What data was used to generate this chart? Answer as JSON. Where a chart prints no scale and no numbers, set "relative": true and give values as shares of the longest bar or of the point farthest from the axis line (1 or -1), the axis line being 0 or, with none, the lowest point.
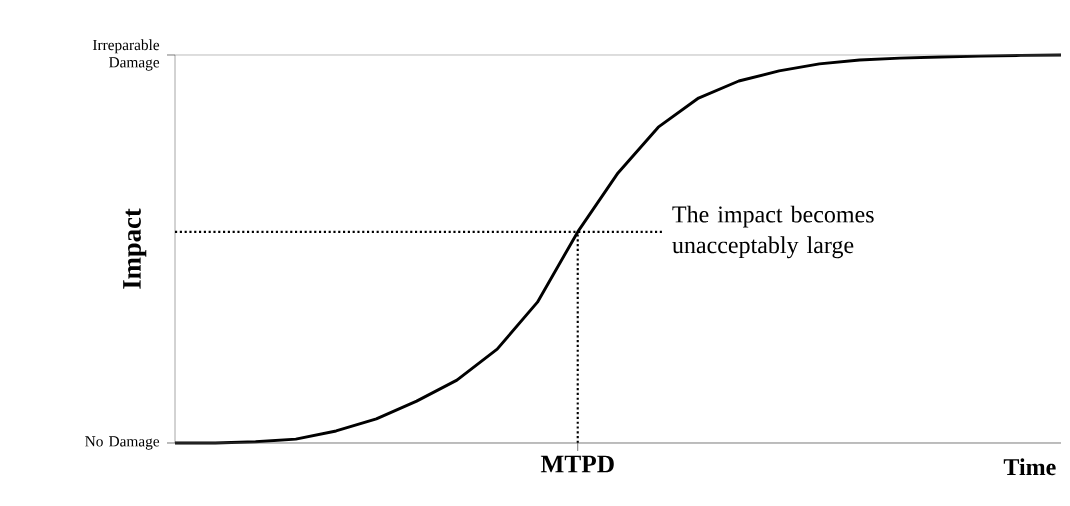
{
  "chart_data": {
    "type": "line",
    "relative": true,
    "xlabel": "Time",
    "ylabel": "Impact",
    "categories": [
      null,
      null,
      null,
      null,
      null,
      null,
      null,
      null,
      null,
      null,
      null,
      null,
      null,
      null,
      null,
      null,
      null,
      null,
      null,
      null,
      null,
      null,
      null
    ],
    "values": [
      0,
      0,
      0.003,
      0.01,
      0.031,
      0.062,
      0.108,
      0.162,
      0.242,
      0.363,
      0.544,
      0.696,
      0.814,
      0.889,
      0.933,
      0.959,
      0.977,
      0.987,
      0.992,
      0.995,
      0.997,
      0.999,
      1
    ],
    "color": "#000000",
    "line_style": "solid",
    "marker": "none",
    "ref_lines": [
      {
        "axis": "y",
        "value": 1,
        "label": "Irreparable Damage",
        "color": "#7f7f7f"
      },
      {
        "axis": "y",
        "value": 0,
        "label": "No Damage",
        "color": "#7f7f7f"
      },
      {
        "axis": "y",
        "value": 0.544,
        "label": "The impact becomes unacceptably large",
        "line_style": "dotted",
        "color": "#000000"
      }
    ],
    "annotations": [
      "MTPD"
    ]
  }
}
